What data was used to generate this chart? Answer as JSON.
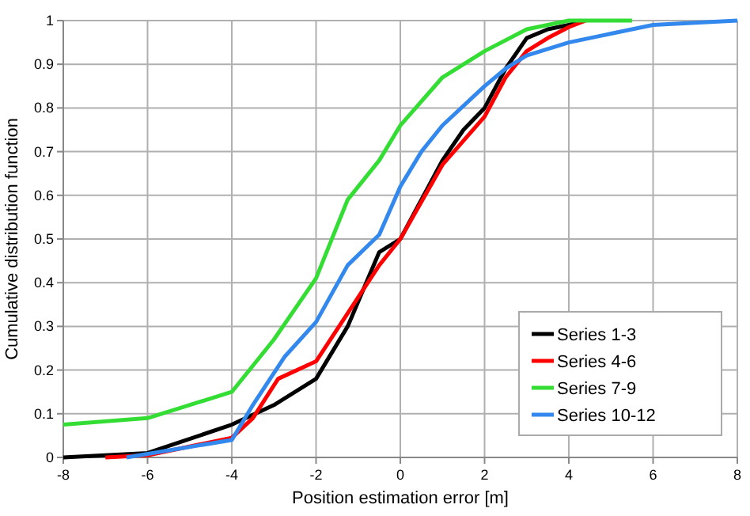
{
  "chart_data": {
    "type": "line",
    "xlabel": "Position estimation error [m]",
    "ylabel": "Cumulative distribution function",
    "xlim": [
      -8,
      8
    ],
    "xticks": [
      -8,
      -6,
      -4,
      -2,
      0,
      2,
      4,
      6,
      8
    ],
    "ylim": [
      0,
      1
    ],
    "yticks": [
      0,
      0.1,
      0.2,
      0.3,
      0.4,
      0.5,
      0.6,
      0.7,
      0.8,
      0.9,
      1
    ],
    "grid": true,
    "legend": "bottom right",
    "marker": "none",
    "line_style": "solid",
    "series": [
      {
        "name": "Series 1-3",
        "color": "#000000",
        "x": [
          -8,
          -6,
          -4,
          -3,
          -2,
          -1.25,
          -0.5,
          0,
          0.5,
          1,
          1.5,
          2,
          2.5,
          3,
          3.5,
          4,
          4.3
        ],
        "values": [
          0,
          0.01,
          0.075,
          0.12,
          0.18,
          0.3,
          0.47,
          0.5,
          0.59,
          0.68,
          0.75,
          0.8,
          0.89,
          0.96,
          0.98,
          0.99,
          1
        ]
      },
      {
        "name": "Series 4-6",
        "color": "#ff0000",
        "x": [
          -7,
          -6,
          -4,
          -3.5,
          -2.9,
          -2,
          -1.25,
          -0.5,
          0,
          1,
          2,
          2.5,
          3,
          3.5,
          4,
          4.4
        ],
        "values": [
          0,
          0.005,
          0.045,
          0.09,
          0.18,
          0.22,
          0.33,
          0.44,
          0.5,
          0.67,
          0.78,
          0.87,
          0.93,
          0.96,
          0.985,
          1
        ]
      },
      {
        "name": "Series 7-9",
        "color": "#33dd33",
        "x": [
          -8,
          -6,
          -4,
          -3,
          -2,
          -1.25,
          -0.5,
          0,
          1,
          2,
          3,
          4,
          5.5
        ],
        "values": [
          0.075,
          0.09,
          0.15,
          0.27,
          0.41,
          0.59,
          0.68,
          0.76,
          0.87,
          0.93,
          0.98,
          1,
          1
        ]
      },
      {
        "name": "Series 10-12",
        "color": "#3388ee",
        "x": [
          -6.5,
          -4,
          -3.5,
          -2.75,
          -2,
          -1.25,
          -0.5,
          0,
          0.5,
          1,
          2,
          2.5,
          3,
          4,
          5,
          6,
          8
        ],
        "values": [
          0,
          0.04,
          0.12,
          0.23,
          0.31,
          0.44,
          0.51,
          0.62,
          0.7,
          0.76,
          0.85,
          0.89,
          0.92,
          0.95,
          0.97,
          0.99,
          1
        ]
      }
    ]
  }
}
